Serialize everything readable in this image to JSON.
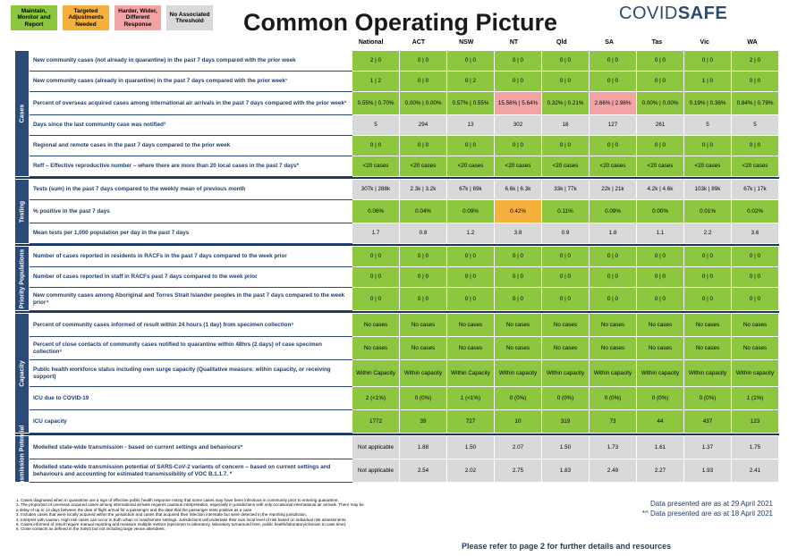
{
  "legend": [
    {
      "label": "Maintain, Monitor and Report",
      "color": "#8dc63f"
    },
    {
      "label": "Targeted Adjustments Needed",
      "color": "#f6b13d"
    },
    {
      "label": "Harder, Wider, Different Response",
      "color": "#f2a3a3"
    },
    {
      "label": "No Associated Threshold",
      "color": "#d9d9d9"
    }
  ],
  "title": "Common Operating Picture",
  "brand": {
    "part1": "COVID",
    "part2": "SAFE"
  },
  "columns": [
    "National",
    "ACT",
    "NSW",
    "NT",
    "Qld",
    "SA",
    "Tas",
    "Vic",
    "WA"
  ],
  "sections": [
    {
      "name": "Cases",
      "rows": [
        {
          "label": "New community cases (not already in quarantine) in the past 7 days compared with the prior week",
          "values": [
            "2 | 0",
            "0 | 0",
            "0 | 0",
            "0 | 0",
            "0 | 0",
            "0 | 0",
            "0 | 0",
            "0 | 0",
            "2 | 0"
          ],
          "colors": [
            "g",
            "g",
            "g",
            "g",
            "g",
            "g",
            "g",
            "g",
            "g"
          ]
        },
        {
          "label": "New community cases (already in quarantine) in the past 7 days compared with the prior week¹",
          "values": [
            "1 | 2",
            "0 | 0",
            "0 | 2",
            "0 | 0",
            "0 | 0",
            "0 | 0",
            "0 | 0",
            "1 | 0",
            "0 | 0"
          ],
          "colors": [
            "g",
            "g",
            "g",
            "g",
            "g",
            "g",
            "g",
            "g",
            "g"
          ]
        },
        {
          "label": "Percent of overseas acquired cases among international air arrivals in the past 7 days compared with the prior week²",
          "values": [
            "0.55% | 0.70%",
            "0.00% | 0.00%",
            "0.57% | 0.55%",
            "15.56% | 5.64%",
            "0.32% | 0.21%",
            "2.66% | 2.98%",
            "0.00% | 0.00%",
            "0.19% | 0.36%",
            "0.84% | 0.79%"
          ],
          "colors": [
            "g",
            "g",
            "g",
            "p",
            "g",
            "p",
            "g",
            "g",
            "g"
          ]
        },
        {
          "label": "Days since the last community case was notified³",
          "values": [
            "5",
            "294",
            "13",
            "302",
            "18",
            "127",
            "261",
            "5",
            "5"
          ],
          "colors": [
            "n",
            "n",
            "n",
            "n",
            "n",
            "n",
            "n",
            "n",
            "n"
          ]
        },
        {
          "label": "Regional and remote cases in the past 7 days compared to the prior week",
          "values": [
            "0 | 0",
            "0 | 0",
            "0 | 0",
            "0 | 0",
            "0 | 0",
            "0 | 0",
            "0 | 0",
            "0 | 0",
            "0 | 0"
          ],
          "colors": [
            "g",
            "g",
            "g",
            "g",
            "g",
            "g",
            "g",
            "g",
            "g"
          ]
        },
        {
          "label": "Reff – Effective reproductive number – where there are more than 20 local cases in the past 7 days*",
          "values": [
            "<20 cases",
            "<20 cases",
            "<20 cases",
            "<20 cases",
            "<20 cases",
            "<20 cases",
            "<20 cases",
            "<20 cases",
            "<20 cases"
          ],
          "colors": [
            "g",
            "g",
            "g",
            "g",
            "g",
            "g",
            "g",
            "g",
            "g"
          ]
        }
      ]
    },
    {
      "name": "Testing",
      "rows": [
        {
          "label": "Tests (sum) in the past 7 days compared to the weekly mean of previous month",
          "values": [
            "307k | 288k",
            "2.3k | 3.2k",
            "67k | 69k",
            "6.6k | 6.3k",
            "33k | 77k",
            "22k | 21k",
            "4.2k | 4.6k",
            "103k | 89k",
            "67k | 17k"
          ],
          "colors": [
            "n",
            "n",
            "n",
            "n",
            "n",
            "n",
            "n",
            "n",
            "n"
          ]
        },
        {
          "label": "% positive in the past 7 days",
          "values": [
            "0.06%",
            "0.04%",
            "0.09%",
            "0.42%",
            "0.11%",
            "0.09%",
            "0.00%",
            "0.01%",
            "0.02%"
          ],
          "colors": [
            "g",
            "g",
            "g",
            "o",
            "g",
            "g",
            "g",
            "g",
            "g"
          ]
        },
        {
          "label": "Mean tests per 1,000 population per day in the past 7 days",
          "values": [
            "1.7",
            "0.8",
            "1.2",
            "3.8",
            "0.9",
            "1.8",
            "1.1",
            "2.2",
            "3.6"
          ],
          "colors": [
            "n",
            "n",
            "n",
            "n",
            "n",
            "n",
            "n",
            "n",
            "n"
          ]
        }
      ]
    },
    {
      "name": "Priority Populations",
      "rows": [
        {
          "label": "Number of cases reported in residents in RACFs in the past 7 days compared to the week prior",
          "values": [
            "0 | 0",
            "0 | 0",
            "0 | 0",
            "0 | 0",
            "0 | 0",
            "0 | 0",
            "0 | 0",
            "0 | 0",
            "0 | 0"
          ],
          "colors": [
            "g",
            "g",
            "g",
            "g",
            "g",
            "g",
            "g",
            "g",
            "g"
          ]
        },
        {
          "label": "Number of cases reported in staff in RACFs past 7 days compared to the week prior",
          "values": [
            "0 | 0",
            "0 | 0",
            "0 | 0",
            "0 | 0",
            "0 | 0",
            "0 | 0",
            "0 | 0",
            "0 | 0",
            "0 | 0"
          ],
          "colors": [
            "g",
            "g",
            "g",
            "g",
            "g",
            "g",
            "g",
            "g",
            "g"
          ]
        },
        {
          "label": "New community cases among Aboriginal and Torres Strait Islander peoples in the past 7 days compared to the week prior⁴",
          "values": [
            "0 | 0",
            "0 | 0",
            "0 | 0",
            "0 | 0",
            "0 | 0",
            "0 | 0",
            "0 | 0",
            "0 | 0",
            "0 | 0"
          ],
          "colors": [
            "g",
            "g",
            "g",
            "g",
            "g",
            "g",
            "g",
            "g",
            "g"
          ]
        }
      ]
    },
    {
      "name": "Capacity",
      "rows": [
        {
          "label": "Percent of community cases informed of result within 24 hours (1 day) from specimen collection⁵",
          "values": [
            "No cases",
            "No cases",
            "No cases",
            "No cases",
            "No cases",
            "No cases",
            "No cases",
            "No cases",
            "No cases"
          ],
          "colors": [
            "g",
            "g",
            "g",
            "g",
            "g",
            "g",
            "g",
            "g",
            "g"
          ]
        },
        {
          "label": "Percent of close contacts of community cases notified to quarantine within 48hrs (2 days) of case specimen collection⁶",
          "values": [
            "No cases",
            "No cases",
            "No cases",
            "No cases",
            "No cases",
            "No cases",
            "No cases",
            "No cases",
            "No cases"
          ],
          "colors": [
            "g",
            "g",
            "g",
            "g",
            "g",
            "g",
            "g",
            "g",
            "g"
          ]
        },
        {
          "label": "Public health workforce status including own surge capacity (Qualitative measure: within capacity, or receiving support)",
          "values": [
            "Within Capacity",
            "Within capacity",
            "Within Capacity",
            "Within capacity",
            "Within capacity",
            "Within capacity",
            "Within capacity",
            "Within capacity",
            "Within capacity"
          ],
          "colors": [
            "g",
            "g",
            "g",
            "g",
            "g",
            "g",
            "g",
            "g",
            "g"
          ]
        },
        {
          "label": "ICU due to COVID-19",
          "values": [
            "2 (<1%)",
            "0 (0%)",
            "1 (<1%)",
            "0 (0%)",
            "0 (0%)",
            "0 (0%)",
            "0 (0%)",
            "0 (0%)",
            "1 (1%)"
          ],
          "colors": [
            "g",
            "g",
            "g",
            "g",
            "g",
            "g",
            "g",
            "g",
            "g"
          ]
        },
        {
          "label": "ICU capacity",
          "values": [
            "1772",
            "39",
            "727",
            "10",
            "319",
            "73",
            "44",
            "437",
            "123"
          ],
          "colors": [
            "g",
            "g",
            "g",
            "g",
            "g",
            "g",
            "g",
            "g",
            "g"
          ]
        }
      ]
    },
    {
      "name": "Transmission Potential",
      "rows": [
        {
          "label": "Modelled state-wide transmission - based on current settings and behaviours*",
          "values": [
            "Not applicable",
            "1.88",
            "1.50",
            "2.07",
            "1.50",
            "1.73",
            "1.61",
            "1.37",
            "1.75"
          ],
          "colors": [
            "n",
            "n",
            "n",
            "n",
            "n",
            "n",
            "n",
            "n",
            "n"
          ]
        },
        {
          "label": "Modelled state-wide transmission potential of SARS-CoV-2 variants of concern – based on current settings and behaviours and accounting for estimated transmissibility of VOC B.1.1.7. *",
          "values": [
            "Not applicable",
            "2.54",
            "2.02",
            "2.75",
            "1.83",
            "2.49",
            "2.27",
            "1.93",
            "2.41"
          ],
          "colors": [
            "n",
            "n",
            "n",
            "n",
            "n",
            "n",
            "n",
            "n",
            "n"
          ]
        }
      ]
    }
  ],
  "footnotes": [
    "1.   Cases diagnosed when in quarantine are a sign of effective public health response noting that some cases may have been infectious in community prior to entering quarantine.",
    "2.   The proportion of overseas acquired cases among international arrivals requires cautious interpretation, especially in jurisdictions with only occasional international air arrivals. There may be",
    "      a delay of up to 14 days between the date of flight arrival for a passenger and the date that the passenger tests positive as a case.",
    "3.   Includes cases that were locally acquired within the jurisdiction and cases that acquired their infection interstate but were detected in the reporting jurisdiction.",
    "4.   Interpret with caution. High risk cases can occur in both urban or rural/remote settings. Jurisdictions will undertake their own local level of risk based on individual risk assessments.",
    "5.   Cases informed of result require manual reporting and measure multiple metrics (specimen to laboratory, laboratory turnaround time, public health/laboratory/clinician to case time).",
    "6.   Close contacts as defined in the SoNG but not including large venue attendees."
  ],
  "dates": [
    "Data presented are as at 29 April 2021",
    "*^ Data presented are as at 18 April 2021"
  ],
  "refer": "Please refer to page 2 for further details and resources"
}
